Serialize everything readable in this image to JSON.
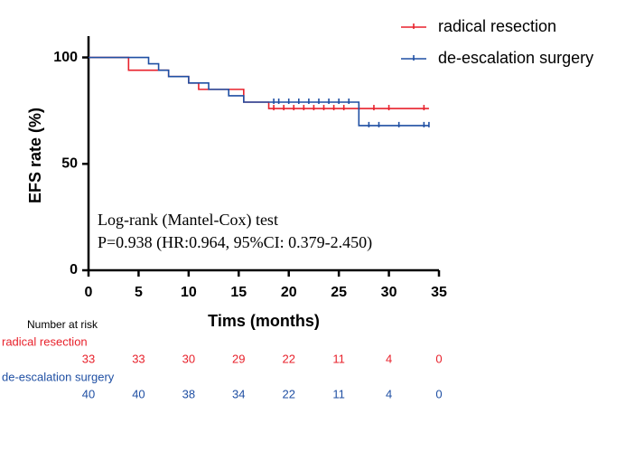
{
  "chart_data": {
    "type": "step",
    "x_label": "Tims (months)",
    "y_label": "EFS rate (%)",
    "xlim": [
      0,
      35
    ],
    "ylim": [
      0,
      110
    ],
    "xticks": [
      0,
      5,
      10,
      15,
      20,
      25,
      30,
      35
    ],
    "yticks": [
      0,
      50,
      100
    ],
    "legend": "top-right",
    "annotations": [
      "Log-rank (Mantel-Cox) test",
      "P=0.938 (HR:0.964, 95%CI: 0.379-2.450)"
    ],
    "series": [
      {
        "name": "radical resection",
        "color": "#e8212b",
        "x": [
          0,
          4,
          8,
          10,
          11,
          15.5,
          18,
          34
        ],
        "values": [
          100,
          94,
          91,
          88,
          85,
          79,
          76,
          76
        ],
        "censor_x": [
          18.5,
          19.5,
          20.5,
          21.5,
          22.5,
          23.5,
          24.5,
          25.5,
          27,
          28.5,
          30,
          33.5
        ],
        "censor_values": [
          76,
          76,
          76,
          76,
          76,
          76,
          76,
          76,
          76,
          76,
          76,
          76
        ]
      },
      {
        "name": "de-escalation surgery",
        "color": "#1f4fa3",
        "x": [
          0,
          6,
          7,
          8,
          10,
          12,
          14,
          15.5,
          27,
          34
        ],
        "values": [
          100,
          97,
          94,
          91,
          88,
          85,
          82,
          79,
          68,
          68
        ],
        "censor_x": [
          18.5,
          19,
          20,
          21,
          22,
          23,
          24,
          25,
          26,
          28,
          29,
          31,
          33.5,
          34
        ],
        "censor_values": [
          79,
          79,
          79,
          79,
          79,
          79,
          79,
          79,
          79,
          68,
          68,
          68,
          68,
          68
        ]
      }
    ],
    "risk_table": {
      "title": "Number at risk",
      "rows": [
        {
          "name": "radical resection",
          "color": "#e8212b",
          "counts": [
            33,
            33,
            30,
            29,
            22,
            11,
            4,
            0
          ]
        },
        {
          "name": "de-escalation surgery",
          "color": "#1f4fa3",
          "counts": [
            40,
            40,
            38,
            34,
            22,
            11,
            4,
            0
          ]
        }
      ]
    }
  }
}
